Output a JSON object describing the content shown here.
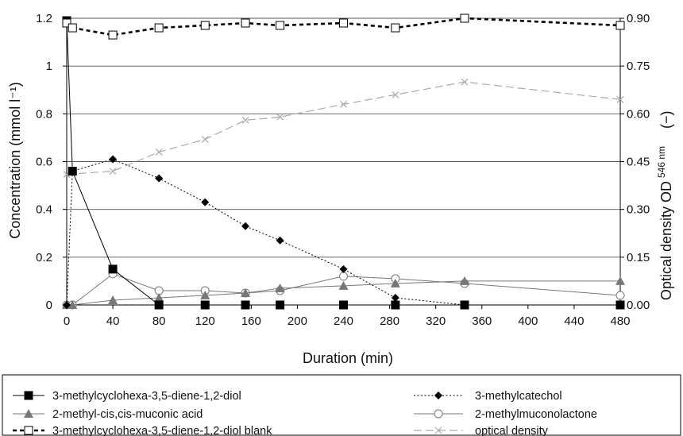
{
  "chart_data": {
    "type": "line",
    "xlabel": "Duration (min)",
    "ylabel_left": "Concentration (mmol l⁻¹)",
    "ylabel_right_main": "Optical density OD",
    "ylabel_right_sub": "546 nm",
    "ylabel_right_unit": "(−)",
    "x_ticks": [
      "0",
      "40",
      "80",
      "120",
      "160",
      "200",
      "240",
      "280",
      "320",
      "360",
      "400",
      "440",
      "480"
    ],
    "y_left_ticks": [
      "0",
      "0.2",
      "0.4",
      "0.6",
      "0.8",
      "1",
      "1.2"
    ],
    "y_right_ticks": [
      "0.00",
      "0.15",
      "0.30",
      "0.45",
      "0.60",
      "0.75",
      "0.90"
    ],
    "xlim": [
      0,
      480
    ],
    "ylim_left": [
      0,
      1.2
    ],
    "ylim_right": [
      0,
      0.9
    ],
    "grid": "horizontal",
    "legend_position": "bottom",
    "series": [
      {
        "name": "3-methylcyclohexa-3,5-diene-1,2-diol",
        "axis": "left",
        "color": "#000000",
        "marker": "filled-square",
        "line": "solid",
        "x": [
          0,
          5,
          40,
          80,
          120,
          155,
          185,
          240,
          285,
          345,
          480
        ],
        "y": [
          1.19,
          0.56,
          0.15,
          0.0,
          0.0,
          0.0,
          0.0,
          0.0,
          0.0,
          0.0,
          0.0
        ]
      },
      {
        "name": "3-methylcatechol",
        "axis": "left",
        "color": "#000000",
        "marker": "filled-diamond",
        "line": "dotted",
        "x": [
          0,
          5,
          40,
          80,
          120,
          155,
          185,
          240,
          285,
          345
        ],
        "y": [
          0.0,
          0.56,
          0.61,
          0.53,
          0.43,
          0.33,
          0.27,
          0.15,
          0.03,
          0.0
        ]
      },
      {
        "name": "2-methyl-cis,cis-muconic acid",
        "axis": "left",
        "color": "#777777",
        "marker": "filled-triangle",
        "line": "solid",
        "x": [
          0,
          5,
          40,
          80,
          120,
          155,
          185,
          240,
          285,
          345,
          480
        ],
        "y": [
          0.0,
          0.0,
          0.02,
          0.03,
          0.04,
          0.05,
          0.07,
          0.08,
          0.09,
          0.1,
          0.1
        ]
      },
      {
        "name": "2-methylmuconolactone",
        "axis": "left",
        "color": "#777777",
        "marker": "open-circle",
        "line": "solid",
        "x": [
          0,
          5,
          40,
          80,
          120,
          155,
          185,
          240,
          285,
          345,
          480
        ],
        "y": [
          0.0,
          0.0,
          0.13,
          0.06,
          0.06,
          0.05,
          0.06,
          0.12,
          0.11,
          0.09,
          0.04
        ]
      },
      {
        "name": "3-methylcyclohexa-3,5-diene-1,2-diol blank",
        "axis": "left",
        "color": "#000000",
        "marker": "open-square",
        "line": "dashed-bold",
        "x": [
          0,
          5,
          40,
          80,
          120,
          155,
          185,
          240,
          285,
          345,
          480
        ],
        "y": [
          1.18,
          1.16,
          1.13,
          1.16,
          1.17,
          1.18,
          1.17,
          1.18,
          1.16,
          1.2,
          1.17
        ]
      },
      {
        "name": "optical density",
        "axis": "right",
        "color": "#aaaaaa",
        "marker": "x",
        "line": "long-dash",
        "x": [
          0,
          40,
          80,
          120,
          155,
          185,
          240,
          285,
          345,
          480
        ],
        "y": [
          0.41,
          0.42,
          0.48,
          0.52,
          0.58,
          0.59,
          0.63,
          0.66,
          0.7,
          0.645
        ]
      }
    ]
  }
}
